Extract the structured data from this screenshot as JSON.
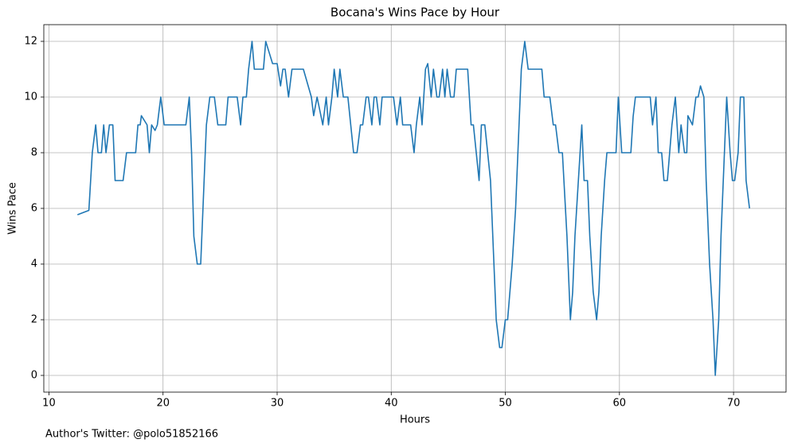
{
  "chart_data": {
    "type": "line",
    "title": "Bocana's Wins Pace by Hour",
    "xlabel": "Hours",
    "ylabel": "Wins Pace",
    "footnote": "Author's Twitter: @polo51852166",
    "x": [
      12.5,
      13.5,
      13.8,
      14.1,
      14.3,
      14.6,
      14.8,
      15.0,
      15.3,
      15.6,
      15.8,
      16.5,
      16.8,
      17.6,
      17.8,
      18.0,
      18.1,
      18.6,
      18.8,
      19.0,
      19.3,
      19.5,
      19.8,
      20.1,
      22.0,
      22.3,
      22.5,
      22.7,
      23.0,
      23.3,
      23.5,
      23.8,
      24.1,
      24.5,
      24.8,
      25.5,
      25.7,
      26.5,
      26.8,
      27.0,
      27.3,
      27.5,
      27.8,
      28.0,
      28.8,
      29.0,
      29.6,
      30.0,
      30.3,
      30.5,
      30.7,
      31.0,
      31.3,
      32.3,
      33.0,
      33.2,
      33.5,
      34.0,
      34.3,
      34.5,
      34.8,
      35.0,
      35.3,
      35.5,
      35.8,
      36.2,
      36.7,
      37.0,
      37.3,
      37.5,
      37.8,
      38.0,
      38.3,
      38.5,
      38.7,
      39.0,
      39.2,
      40.2,
      40.5,
      40.8,
      41.0,
      41.7,
      42.0,
      42.2,
      42.5,
      42.7,
      43.0,
      43.2,
      43.5,
      43.7,
      44.0,
      44.2,
      44.5,
      44.7,
      44.9,
      45.2,
      45.5,
      45.7,
      46.7,
      47.0,
      47.2,
      47.7,
      47.9,
      48.2,
      48.7,
      49.0,
      49.2,
      49.5,
      49.7,
      50.0,
      50.2,
      50.6,
      50.9,
      51.2,
      51.4,
      51.7,
      52.0,
      53.2,
      53.4,
      53.9,
      54.2,
      54.4,
      54.7,
      55.0,
      55.4,
      55.7,
      55.9,
      56.1,
      56.4,
      56.7,
      56.9,
      57.2,
      57.4,
      57.7,
      58.0,
      58.2,
      58.4,
      58.7,
      58.9,
      59.7,
      59.9,
      60.2,
      61.0,
      61.2,
      61.4,
      62.7,
      62.9,
      63.2,
      63.4,
      63.7,
      63.9,
      64.2,
      64.4,
      64.6,
      64.9,
      65.2,
      65.4,
      65.7,
      65.9,
      66.0,
      66.4,
      66.7,
      66.9,
      67.1,
      67.4,
      67.6,
      67.9,
      68.2,
      68.4,
      68.7,
      68.9,
      69.2,
      69.4,
      69.7,
      69.9,
      70.1,
      70.4,
      70.6,
      70.9,
      71.1,
      71.4
    ],
    "series": [
      {
        "name": "Wins Pace",
        "color": "#1f77b4",
        "values": [
          5.77,
          5.93,
          8,
          9,
          8,
          8,
          9,
          8,
          9,
          9,
          7,
          7,
          8,
          8,
          9,
          9,
          9.33,
          9,
          8,
          9,
          8.8,
          9,
          10,
          9,
          9,
          10,
          8,
          5,
          4,
          4,
          6,
          9,
          10,
          10,
          9,
          9,
          10,
          10,
          9,
          10,
          10,
          11,
          12,
          11,
          11,
          12,
          11.2,
          11.2,
          10.4,
          11,
          11,
          10,
          11,
          11,
          10,
          9.33,
          10,
          9,
          10,
          9,
          10,
          11,
          10,
          11,
          10,
          10,
          8,
          8,
          9,
          9,
          10,
          10,
          9,
          10,
          10,
          9,
          10,
          10,
          9,
          10,
          9,
          9,
          8,
          9,
          10,
          9,
          11,
          11.2,
          10,
          11,
          10,
          10,
          11,
          10,
          11,
          10,
          10,
          11,
          11,
          9,
          9,
          7,
          9,
          9,
          7,
          4,
          2,
          1,
          1,
          2,
          2,
          4,
          6,
          9,
          11,
          12,
          11,
          11,
          10,
          10,
          9,
          9,
          8,
          8,
          5,
          2,
          3,
          5,
          7,
          9,
          7,
          7,
          5,
          3,
          2,
          3,
          5,
          7,
          8,
          8,
          10,
          8,
          8,
          9.3,
          10,
          10,
          9,
          10,
          8,
          8,
          7,
          7,
          8,
          9,
          10,
          8,
          9,
          8,
          8,
          9.33,
          9,
          10,
          10,
          10.4,
          10,
          7,
          4,
          2,
          0,
          2,
          5,
          8,
          10,
          8,
          7,
          7,
          8,
          10,
          10,
          7,
          6
        ]
      }
    ],
    "xlim": [
      9.55,
      74.6
    ],
    "ylim": [
      -0.6,
      12.6
    ],
    "xticks": [
      10,
      20,
      30,
      40,
      50,
      60,
      70
    ],
    "yticks": [
      0,
      2,
      4,
      6,
      8,
      10,
      12
    ],
    "grid": true
  }
}
